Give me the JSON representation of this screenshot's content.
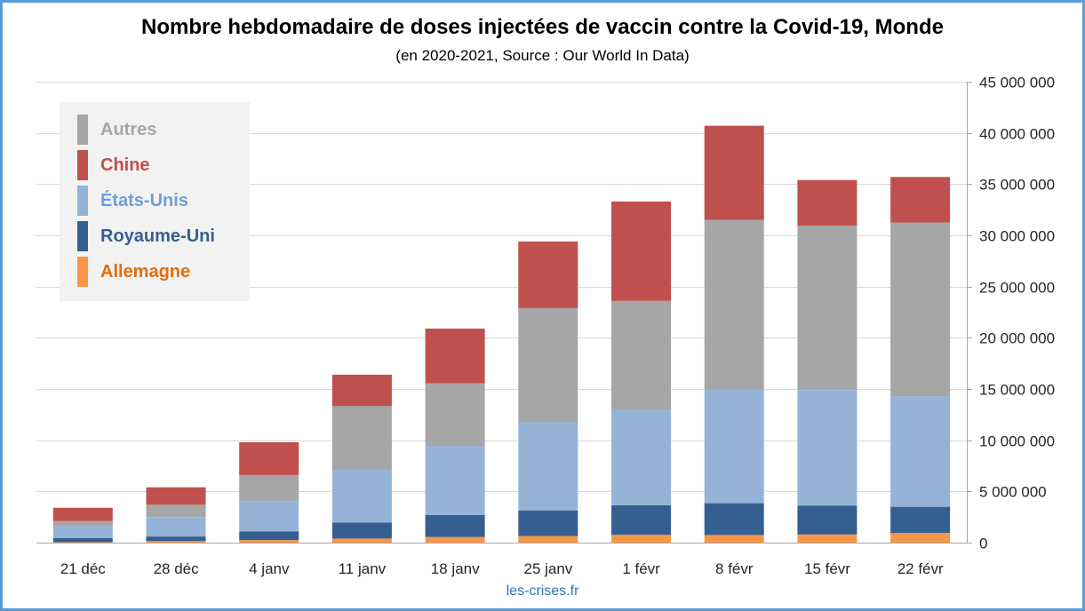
{
  "header": {
    "title": "Nombre hebdomadaire de doses injectées de vaccin contre la Covid-19, Monde",
    "subtitle": "(en 2020-2021, Source : Our World In Data)"
  },
  "footer": {
    "credit": "les-crises.fr"
  },
  "chart_data": {
    "type": "bar",
    "stacked": true,
    "title": "Nombre hebdomadaire de doses injectées de vaccin contre la Covid-19, Monde",
    "subtitle": "(en 2020-2021, Source : Our World In Data)",
    "categories": [
      "21 déc",
      "28 déc",
      "4 janv",
      "11 janv",
      "18 janv",
      "25 janv",
      "1 févr",
      "8 févr",
      "15 févr",
      "22 févr"
    ],
    "ylim": [
      0,
      45000000
    ],
    "yticks": [
      0,
      5000000,
      10000000,
      15000000,
      20000000,
      25000000,
      30000000,
      35000000,
      40000000,
      45000000
    ],
    "ytick_labels": [
      "0",
      "5 000 000",
      "10 000 000",
      "15 000 000",
      "20 000 000",
      "25 000 000",
      "30 000 000",
      "35 000 000",
      "40 000 000",
      "45 000 000"
    ],
    "y_axis_side": "right",
    "grid": true,
    "legend_position": "top-left",
    "series": [
      {
        "name": "Allemagne",
        "color": "#f79646",
        "label_color": "#e46c0a",
        "values": [
          50000,
          150000,
          250000,
          400000,
          550000,
          650000,
          750000,
          750000,
          800000,
          950000
        ]
      },
      {
        "name": "Royaume-Uni",
        "color": "#365f91",
        "label_color": "#365f91",
        "values": [
          400000,
          450000,
          850000,
          1550000,
          2150000,
          2500000,
          2900000,
          3100000,
          2800000,
          2550000
        ]
      },
      {
        "name": "États-Unis",
        "color": "#95b3d7",
        "label_color": "#6f9fd8",
        "values": [
          1150000,
          1900000,
          2950000,
          5150000,
          6750000,
          8600000,
          9400000,
          11100000,
          11300000,
          10800000
        ]
      },
      {
        "name": "Autres",
        "color": "#a6a6a6",
        "label_color": "#a6a6a6",
        "values": [
          500000,
          1200000,
          2550000,
          6250000,
          6100000,
          11150000,
          10550000,
          16550000,
          16050000,
          16950000
        ]
      },
      {
        "name": "Chine",
        "color": "#c0504d",
        "label_color": "#c0504d",
        "values": [
          1300000,
          1700000,
          3200000,
          3050000,
          5350000,
          6500000,
          9700000,
          9200000,
          4450000,
          4450000
        ]
      }
    ],
    "legend_order": [
      "Autres",
      "Chine",
      "États-Unis",
      "Royaume-Uni",
      "Allemagne"
    ]
  }
}
